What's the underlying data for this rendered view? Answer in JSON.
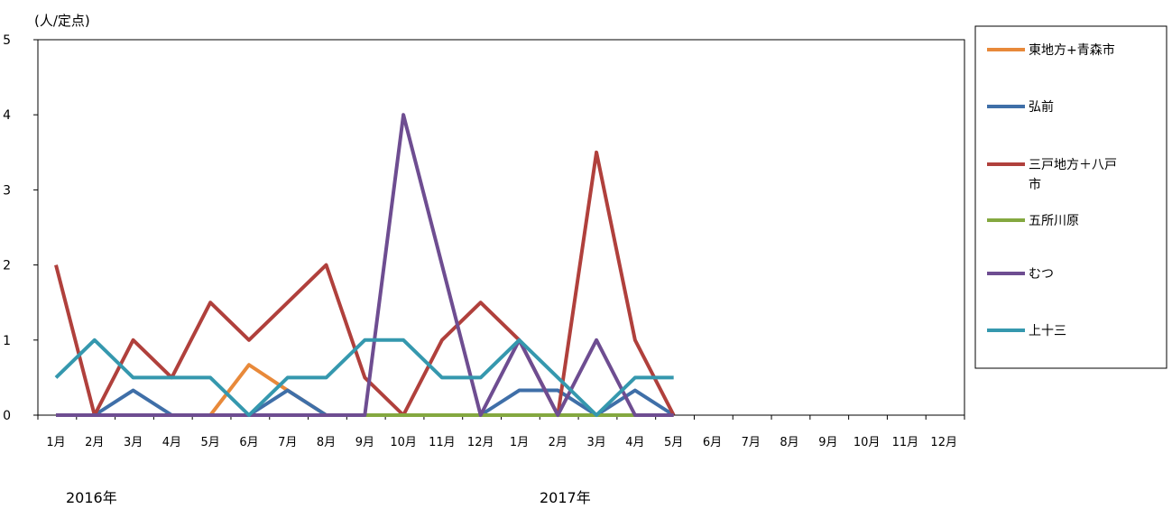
{
  "chart_data": {
    "type": "line",
    "ylabel": "(人/定点)",
    "ylim": [
      0,
      5
    ],
    "yticks": [
      "0",
      "1",
      "2",
      "3",
      "4",
      "5"
    ],
    "categories": [
      "1月",
      "2月",
      "3月",
      "4月",
      "5月",
      "6月",
      "7月",
      "8月",
      "9月",
      "10月",
      "11月",
      "12月",
      "1月",
      "2月",
      "3月",
      "4月",
      "5月",
      "6月",
      "7月",
      "8月",
      "9月",
      "10月",
      "11月",
      "12月"
    ],
    "years": [
      "2016年",
      "2017年"
    ],
    "grid": false,
    "legend_position": "right",
    "series": [
      {
        "name": "東地方+青森市",
        "color": "#E8893A",
        "values": [
          0,
          0,
          0,
          0,
          0,
          0.67,
          0.33,
          0,
          0,
          0,
          0,
          0,
          0,
          0,
          0,
          0,
          0,
          null,
          null,
          null,
          null,
          null,
          null,
          null
        ]
      },
      {
        "name": "弘前",
        "color": "#3F6FA8",
        "values": [
          0,
          0,
          0.33,
          0,
          0,
          0,
          0.33,
          0,
          0,
          0,
          0,
          0,
          0.33,
          0.33,
          0,
          0.33,
          0,
          null,
          null,
          null,
          null,
          null,
          null,
          null
        ]
      },
      {
        "name": "三戸地方＋八戸市",
        "color": "#B0403C",
        "values": [
          2,
          0,
          1,
          0.5,
          1.5,
          1,
          1.5,
          2,
          0.5,
          0,
          1,
          1.5,
          1,
          0,
          3.5,
          1,
          0,
          null,
          null,
          null,
          null,
          null,
          null,
          null
        ]
      },
      {
        "name": "五所川原",
        "color": "#84A840",
        "values": [
          null,
          null,
          null,
          null,
          null,
          null,
          null,
          null,
          0,
          0,
          0,
          0,
          0,
          0,
          0,
          0,
          null,
          null,
          null,
          null,
          null,
          null,
          null,
          null
        ]
      },
      {
        "name": "むつ",
        "color": "#6E4D91",
        "values": [
          0,
          0,
          0,
          0,
          0,
          0,
          0,
          0,
          0,
          4,
          2,
          0,
          1,
          0,
          1,
          0,
          0,
          null,
          null,
          null,
          null,
          null,
          null,
          null
        ]
      },
      {
        "name": "上十三",
        "color": "#3598AE",
        "values": [
          0.5,
          1,
          0.5,
          0.5,
          0.5,
          0,
          0.5,
          0.5,
          1,
          1,
          0.5,
          0.5,
          1,
          0.5,
          0,
          0.5,
          0.5,
          null,
          null,
          null,
          null,
          null,
          null,
          null
        ]
      }
    ]
  }
}
